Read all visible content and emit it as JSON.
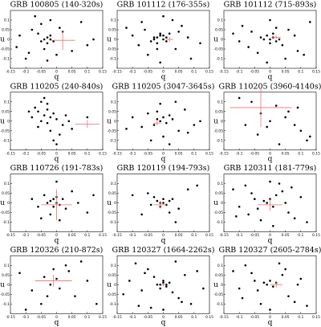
{
  "chart_data": [
    {
      "type": "scatter",
      "title": "GRB 100805 (140-320s)",
      "xlabel": "q",
      "ylabel": "u",
      "color": "#000000",
      "x": [
        -0.12,
        -0.1,
        -0.08,
        -0.06,
        -0.05,
        -0.04,
        -0.03,
        -0.03,
        -0.02,
        -0.02,
        -0.01,
        -0.04,
        -0.05,
        -0.02,
        0.0,
        0.02,
        0.05,
        0.08,
        0.1,
        0.12,
        -0.13,
        -0.07,
        -0.03,
        0.01,
        -0.09
      ],
      "values": [
        0.02,
        -0.1,
        0.05,
        0.03,
        -0.01,
        0.0,
        0.01,
        -0.02,
        0.02,
        0.0,
        -0.01,
        -0.05,
        0.08,
        0.1,
        -0.08,
        0.04,
        -0.06,
        0.09,
        -0.03,
        0.0,
        -0.04,
        0.12,
        -0.11,
        0.06,
        -0.07
      ],
      "mean": {
        "x": 0.02,
        "y": -0.005,
        "x_err": 0.04,
        "y_err": 0.05,
        "color": "#e87070"
      },
      "xlim": [
        -0.15,
        0.15
      ],
      "ylim": [
        -0.15,
        0.15
      ],
      "xticks": [
        -0.15,
        -0.1,
        -0.05,
        0,
        0.05,
        0.1,
        0.15
      ],
      "yticks": [
        -0.1,
        -0.05,
        0,
        0.05,
        0.1
      ]
    },
    {
      "type": "scatter",
      "title": "GRB 101112 (176-355s)",
      "xlabel": "q",
      "ylabel": "u",
      "color": "#000000",
      "x": [
        -0.03,
        -0.02,
        -0.01,
        0.0,
        0.01,
        -0.02,
        -0.01,
        0.0,
        -0.03,
        0.01,
        -0.04,
        0.02,
        -0.06,
        0.04,
        -0.08,
        0.06,
        -0.1,
        0.09,
        -0.12,
        0.12,
        -0.05,
        0.03,
        0.0,
        -0.01,
        0.05,
        -0.07,
        0.08,
        -0.02
      ],
      "values": [
        0.0,
        0.01,
        0.02,
        0.0,
        -0.01,
        -0.02,
        0.03,
        0.02,
        0.01,
        0.01,
        -0.01,
        0.03,
        0.05,
        -0.05,
        -0.03,
        0.07,
        0.02,
        -0.1,
        0.06,
        -0.02,
        -0.08,
        0.1,
        0.12,
        -0.12,
        0.04,
        0.09,
        0.01,
        -0.05
      ],
      "mean": {
        "x": 0.02,
        "y": 0.0,
        "x_err": 0.012,
        "y_err": 0.012,
        "color": "#e87070"
      },
      "xlim": [
        -0.15,
        0.15
      ],
      "ylim": [
        -0.15,
        0.15
      ],
      "xticks": [
        -0.15,
        -0.1,
        -0.05,
        0,
        0.05,
        0.1,
        0.15
      ],
      "yticks": [
        -0.1,
        -0.05,
        0,
        0.05,
        0.1
      ]
    },
    {
      "type": "scatter",
      "title": "GRB 101112 (715-893s)",
      "xlabel": "q",
      "ylabel": "u",
      "color": "#000000",
      "x": [
        0.0,
        0.01,
        -0.01,
        0.02,
        0.03,
        -0.02,
        0.0,
        0.01,
        -0.03,
        0.04,
        -0.06,
        0.06,
        -0.09,
        0.09,
        -0.12,
        0.13,
        -0.04,
        0.05,
        0.0,
        -0.07,
        0.08,
        -0.1,
        0.11,
        -0.01,
        0.02
      ],
      "values": [
        0.0,
        0.01,
        0.02,
        -0.01,
        0.0,
        0.0,
        -0.02,
        0.03,
        0.01,
        -0.03,
        0.04,
        0.05,
        0.07,
        -0.06,
        0.03,
        0.09,
        -0.07,
        -0.1,
        0.1,
        -0.04,
        0.02,
        -0.01,
        -0.08,
        -0.12,
        0.06
      ],
      "mean": {
        "x": 0.02,
        "y": 0.01,
        "x_err": 0.015,
        "y_err": 0.01,
        "color": "#e87070"
      },
      "xlim": [
        -0.15,
        0.15
      ],
      "ylim": [
        -0.15,
        0.15
      ],
      "xticks": [
        -0.15,
        -0.1,
        -0.05,
        0,
        0.05,
        0.1,
        0.15
      ],
      "yticks": [
        -0.1,
        -0.05,
        0,
        0.05,
        0.1
      ]
    },
    {
      "type": "scatter",
      "title": "GRB 110205 (240-840s)",
      "xlabel": "q",
      "ylabel": "u",
      "color": "#000000",
      "x": [
        -0.07,
        -0.06,
        -0.05,
        -0.04,
        -0.03,
        -0.02,
        -0.05,
        -0.03,
        -0.01,
        0.0,
        0.02,
        -0.04,
        -0.08,
        -0.02,
        0.01,
        0.04,
        -0.06,
        -0.03,
        0.05,
        -0.01,
        0.03,
        -0.09,
        0.1,
        0.0
      ],
      "values": [
        0.07,
        0.05,
        0.1,
        0.03,
        0.06,
        0.02,
        0.0,
        -0.01,
        0.04,
        0.01,
        -0.02,
        0.12,
        0.02,
        -0.05,
        -0.07,
        0.0,
        -0.03,
        0.09,
        -0.04,
        -0.1,
        0.03,
        0.05,
        0.02,
        -0.12
      ],
      "mean": {
        "x": 0.1,
        "y": -0.015,
        "x_err": 0.04,
        "y_err": 0.02,
        "color": "#e87070"
      },
      "xlim": [
        -0.15,
        0.15
      ],
      "ylim": [
        -0.15,
        0.15
      ],
      "xticks": [
        -0.15,
        -0.1,
        -0.05,
        0,
        0.05,
        0.1,
        0.15
      ],
      "yticks": [
        -0.1,
        -0.05,
        0,
        0.05,
        0.1
      ]
    },
    {
      "type": "scatter",
      "title": "GRB 110205 (3047-3645s)",
      "xlabel": "q",
      "ylabel": "u",
      "color": "#000000",
      "x": [
        -0.02,
        -0.01,
        0.0,
        0.01,
        0.02,
        -0.03,
        0.03,
        -0.05,
        0.05,
        -0.07,
        0.07,
        -0.1,
        0.1,
        0.0,
        -0.01,
        0.04,
        -0.04,
        0.08,
        0.02,
        -0.02,
        0.12,
        -0.12
      ],
      "values": [
        0.01,
        0.0,
        0.02,
        -0.01,
        0.03,
        -0.02,
        0.01,
        0.04,
        -0.05,
        -0.03,
        0.06,
        0.02,
        -0.02,
        -0.08,
        0.09,
        0.1,
        -0.1,
        -0.06,
        -0.12,
        0.05,
        0.0,
        -0.04
      ],
      "mean": {
        "x": -0.02,
        "y": -0.01,
        "x_err": 0.012,
        "y_err": 0.012,
        "color": "#e87070"
      },
      "xlim": [
        -0.15,
        0.15
      ],
      "ylim": [
        -0.15,
        0.15
      ],
      "xticks": [
        -0.15,
        -0.1,
        -0.05,
        0,
        0.05,
        0.1,
        0.15
      ],
      "yticks": [
        -0.1,
        -0.05,
        0,
        0.05,
        0.1
      ]
    },
    {
      "type": "scatter",
      "title": "GRB 110205 (3960-4140s)",
      "xlabel": "q",
      "ylabel": "u",
      "color": "#000000",
      "x": [
        -0.1,
        -0.06,
        -0.03,
        0.0,
        0.02,
        0.05,
        0.08,
        0.1,
        0.12,
        -0.04,
        0.03,
        0.06,
        -0.01,
        0.09,
        0.13,
        -0.08
      ],
      "values": [
        0.12,
        0.1,
        0.04,
        0.0,
        0.08,
        0.02,
        -0.02,
        -0.05,
        -0.1,
        -0.07,
        -0.12,
        0.05,
        -0.03,
        0.07,
        -0.08,
        -0.02
      ],
      "mean": {
        "x": -0.03,
        "y": 0.07,
        "x_err": 0.1,
        "y_err": 0.1,
        "color": "#e87070"
      },
      "xlim": [
        -0.15,
        0.15
      ],
      "ylim": [
        -0.15,
        0.15
      ],
      "xticks": [
        -0.15,
        -0.1,
        -0.05,
        0,
        0.05,
        0.1,
        0.15
      ],
      "yticks": [
        -0.1,
        -0.05,
        0,
        0.05,
        0.1
      ]
    },
    {
      "type": "scatter",
      "title": "GRB 110726 (191-783s)",
      "xlabel": "q",
      "ylabel": "u",
      "color": "#000000",
      "x": [
        -0.02,
        -0.01,
        0.0,
        0.01,
        -0.03,
        0.02,
        -0.01,
        0.0,
        -0.04,
        0.03,
        -0.06,
        0.05,
        -0.02,
        0.01,
        -0.08,
        0.07,
        0.1,
        0.0,
        -0.05,
        0.12
      ],
      "values": [
        0.01,
        0.02,
        0.0,
        -0.01,
        0.0,
        0.02,
        -0.02,
        0.03,
        0.04,
        -0.03,
        -0.02,
        0.06,
        -0.06,
        -0.09,
        0.02,
        0.0,
        -0.05,
        0.11,
        -0.08,
        0.04
      ],
      "mean": {
        "x": 0.0,
        "y": -0.01,
        "x_err": 0.05,
        "y_err": 0.08,
        "color": "#e87070"
      },
      "xlim": [
        -0.15,
        0.15
      ],
      "ylim": [
        -0.15,
        0.15
      ],
      "xticks": [
        -0.15,
        -0.1,
        -0.05,
        0,
        0.05,
        0.1,
        0.15
      ],
      "yticks": [
        -0.1,
        -0.05,
        0,
        0.05,
        0.1
      ]
    },
    {
      "type": "scatter",
      "title": "GRB 120119 (194-793s)",
      "xlabel": "q",
      "ylabel": "u",
      "color": "#000000",
      "x": [
        -0.02,
        -0.01,
        0.0,
        0.01,
        -0.03,
        0.02,
        -0.01,
        0.0,
        -0.04,
        0.03,
        -0.05,
        0.05,
        -0.07,
        0.08,
        0.11,
        -0.1,
        0.04,
        0.02
      ],
      "values": [
        0.01,
        0.0,
        0.02,
        -0.01,
        0.03,
        0.01,
        -0.02,
        0.0,
        -0.01,
        0.02,
        0.05,
        -0.03,
        -0.06,
        0.07,
        0.09,
        0.04,
        -0.1,
        -0.05
      ],
      "mean": {
        "x": -0.01,
        "y": -0.01,
        "x_err": 0.02,
        "y_err": 0.02,
        "color": "#e87070"
      },
      "xlim": [
        -0.15,
        0.15
      ],
      "ylim": [
        -0.15,
        0.15
      ],
      "xticks": [
        -0.15,
        -0.1,
        -0.05,
        0,
        0.05,
        0.1,
        0.15
      ],
      "yticks": [
        -0.1,
        -0.05,
        0,
        0.05,
        0.1
      ]
    },
    {
      "type": "scatter",
      "title": "GRB 120311 (181-779s)",
      "xlabel": "q",
      "ylabel": "u",
      "color": "#000000",
      "x": [
        -0.01,
        0.0,
        0.01,
        -0.02,
        0.02,
        -0.04,
        0.04,
        -0.06,
        0.06,
        -0.08,
        0.08,
        -0.1,
        0.1,
        -0.12,
        0.12,
        0.0,
        -0.03,
        0.03,
        0.05,
        -0.05,
        0.07,
        -0.07,
        0.01,
        -0.11
      ],
      "values": [
        0.0,
        0.02,
        -0.02,
        0.01,
        0.04,
        -0.03,
        0.06,
        0.05,
        -0.05,
        0.09,
        -0.08,
        -0.02,
        0.03,
        0.07,
        -0.1,
        0.11,
        -0.09,
        0.1,
        0.0,
        0.02,
        0.08,
        -0.06,
        -0.12,
        -0.07
      ],
      "mean": {
        "x": 0.0,
        "y": -0.01,
        "x_err": 0.04,
        "y_err": 0.03,
        "color": "#e87070"
      },
      "xlim": [
        -0.15,
        0.15
      ],
      "ylim": [
        -0.15,
        0.15
      ],
      "xticks": [
        -0.15,
        -0.1,
        -0.05,
        0,
        0.05,
        0.1,
        0.15
      ],
      "yticks": [
        -0.1,
        -0.05,
        0,
        0.05,
        0.1
      ]
    },
    {
      "type": "scatter",
      "title": "GRB 120326 (210-872s)",
      "xlabel": "q",
      "ylabel": "u",
      "color": "#000000",
      "x": [
        -0.12,
        -0.08,
        -0.04,
        -0.02,
        0.0,
        0.01,
        -0.01,
        0.03,
        0.06,
        0.1,
        0.13,
        -0.05,
        0.04,
        -0.1,
        0.08,
        -0.03
      ],
      "values": [
        0.06,
        -0.03,
        0.04,
        0.0,
        0.03,
        -0.02,
        0.08,
        0.1,
        -0.06,
        0.02,
        -0.1,
        -0.1,
        0.07,
        -0.13,
        0.12,
        -0.06
      ],
      "mean": {
        "x": -0.01,
        "y": 0.02,
        "x_err": 0.06,
        "y_err": 0.03,
        "color": "#e87070"
      },
      "xlim": [
        -0.15,
        0.15
      ],
      "ylim": [
        -0.15,
        0.15
      ],
      "xticks": [
        -0.15,
        -0.1,
        -0.05,
        0,
        0.05,
        0.1,
        0.15
      ],
      "yticks": [
        -0.1,
        -0.05,
        0,
        0.05,
        0.1
      ]
    },
    {
      "type": "scatter",
      "title": "GRB 120327 (1664-2262s)",
      "xlabel": "q",
      "ylabel": "u",
      "color": "#000000",
      "x": [
        -0.01,
        0.0,
        0.01,
        -0.02,
        0.02,
        -0.01,
        0.0,
        0.01,
        -0.03,
        0.03,
        -0.05,
        0.05,
        -0.07,
        0.07,
        -0.09,
        0.09,
        -0.11,
        0.11,
        -0.13,
        0.13,
        -0.04,
        0.04,
        0.0,
        -0.06,
        0.06,
        -0.08
      ],
      "values": [
        0.0,
        0.01,
        -0.01,
        0.0,
        0.01,
        -0.02,
        0.02,
        0.0,
        0.04,
        -0.04,
        0.08,
        -0.07,
        -0.03,
        0.05,
        0.11,
        -0.1,
        0.02,
        0.07,
        -0.05,
        -0.02,
        -0.12,
        0.12,
        -0.13,
        0.06,
        -0.09,
        -0.11
      ],
      "mean": {
        "x": 0.0,
        "y": 0.0,
        "x_err": 0.008,
        "y_err": 0.008,
        "color": "#e87070"
      },
      "xlim": [
        -0.15,
        0.15
      ],
      "ylim": [
        -0.15,
        0.15
      ],
      "xticks": [
        -0.15,
        -0.1,
        -0.05,
        0,
        0.05,
        0.1,
        0.15
      ],
      "yticks": [
        -0.1,
        -0.05,
        0,
        0.05,
        0.1
      ]
    },
    {
      "type": "scatter",
      "title": "GRB 120327 (2605-2784s)",
      "xlabel": "q",
      "ylabel": "u",
      "color": "#000000",
      "x": [
        -0.01,
        0.0,
        0.01,
        -0.02,
        0.02,
        -0.04,
        0.04,
        -0.06,
        0.06,
        -0.08,
        0.08,
        -0.1,
        0.1,
        -0.12,
        0.12,
        0.03,
        -0.03,
        0.0,
        0.05,
        -0.05,
        -0.09,
        0.09
      ],
      "values": [
        0.0,
        0.02,
        -0.01,
        0.01,
        0.01,
        -0.03,
        0.05,
        0.06,
        -0.06,
        0.1,
        -0.09,
        -0.02,
        0.03,
        0.07,
        -0.11,
        0.11,
        -0.1,
        -0.13,
        0.08,
        0.02,
        -0.07,
        0.0
      ],
      "mean": {
        "x": 0.02,
        "y": 0.0,
        "x_err": 0.02,
        "y_err": 0.015,
        "color": "#e87070"
      },
      "xlim": [
        -0.15,
        0.15
      ],
      "ylim": [
        -0.15,
        0.15
      ],
      "xticks": [
        -0.15,
        -0.1,
        -0.05,
        0,
        0.05,
        0.1,
        0.15
      ],
      "yticks": [
        -0.1,
        -0.05,
        0,
        0.05,
        0.1
      ]
    }
  ]
}
